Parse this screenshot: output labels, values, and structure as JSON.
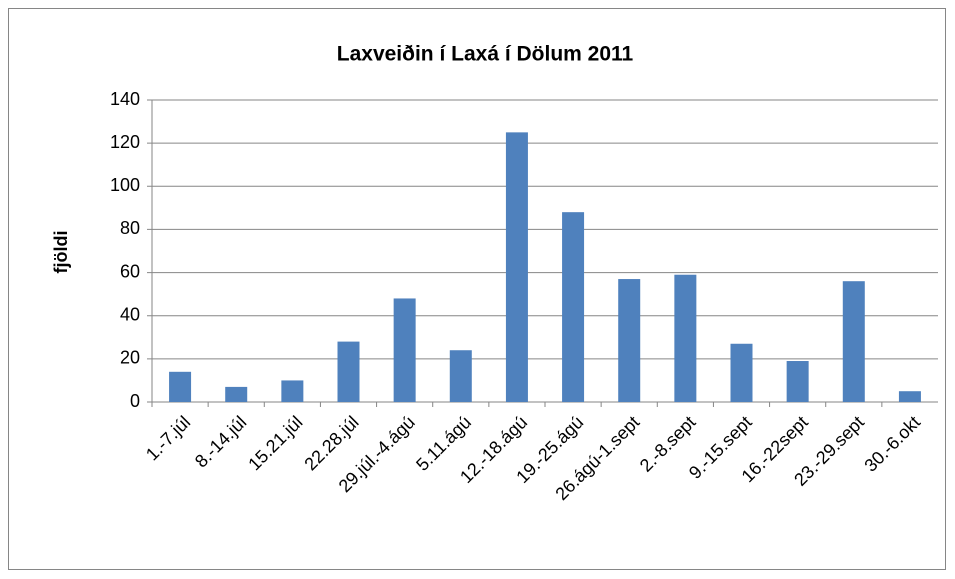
{
  "chart_data": {
    "type": "bar",
    "title": "Laxveiðin í Laxá í Dölum 2011",
    "y_label": "fjöldi",
    "categories": [
      "1.-7.júl",
      "8.-14.júl",
      "15.21.júl",
      "22.28.júl",
      "29.júl.-4.ágú",
      "5.11.ágú",
      "12.-18.ágú",
      "19.-25.ágú",
      "26.ágú-1.sept",
      "2.-8.sept",
      "9.-15.sept",
      "16.-22sept",
      "23.-29.sept",
      "30.-6.okt"
    ],
    "values": [
      14,
      7,
      10,
      28,
      48,
      24,
      125,
      88,
      57,
      59,
      27,
      19,
      56,
      5
    ],
    "color": "#4f81bd",
    "ylim": [
      0,
      140
    ],
    "yticks": [
      0,
      20,
      40,
      60,
      80,
      100,
      120,
      140
    ],
    "grid": true
  }
}
